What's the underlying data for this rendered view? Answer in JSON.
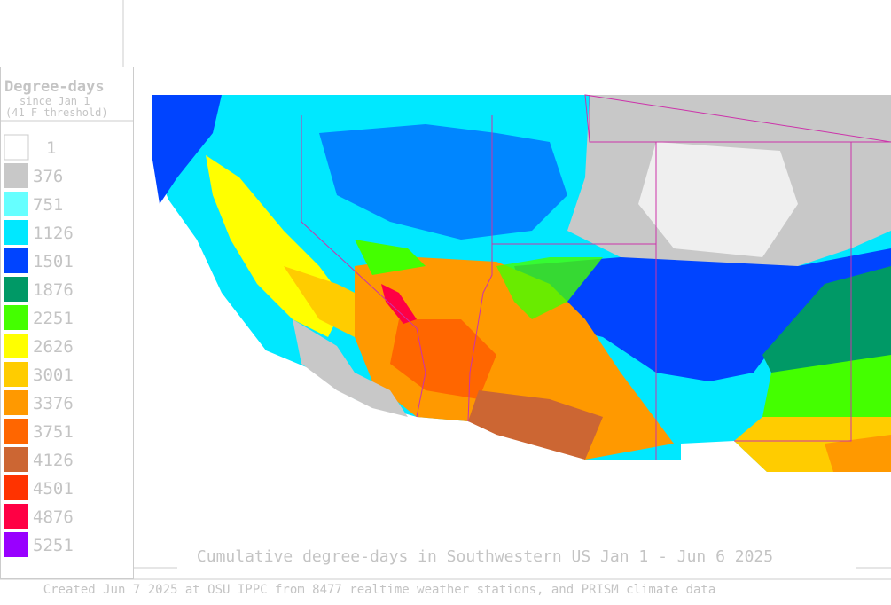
{
  "legend": {
    "title": "Degree-days",
    "subtitle": "since Jan 1",
    "note": "(41 F threshold)",
    "items": [
      {
        "label": "1",
        "color": "#ffffff"
      },
      {
        "label": "376",
        "color": "#c8c8c8"
      },
      {
        "label": "751",
        "color": "#66ffff"
      },
      {
        "label": "1126",
        "color": "#00e8ff"
      },
      {
        "label": "1501",
        "color": "#0044ff"
      },
      {
        "label": "1876",
        "color": "#009966"
      },
      {
        "label": "2251",
        "color": "#44ff00"
      },
      {
        "label": "2626",
        "color": "#ffff00"
      },
      {
        "label": "3001",
        "color": "#ffcc00"
      },
      {
        "label": "3376",
        "color": "#ff9900"
      },
      {
        "label": "3751",
        "color": "#ff6600"
      },
      {
        "label": "4126",
        "color": "#cc6633"
      },
      {
        "label": "4501",
        "color": "#ff3300"
      },
      {
        "label": "4876",
        "color": "#ff0044"
      },
      {
        "label": "5251",
        "color": "#9900ff"
      }
    ]
  },
  "map": {
    "title": "Cumulative degree-days in Southwestern US Jan 1 - Jun 6 2025"
  },
  "footer": "Created Jun 7 2025 at OSU IPPC from 8477 realtime weather stations, and PRISM climate data"
}
